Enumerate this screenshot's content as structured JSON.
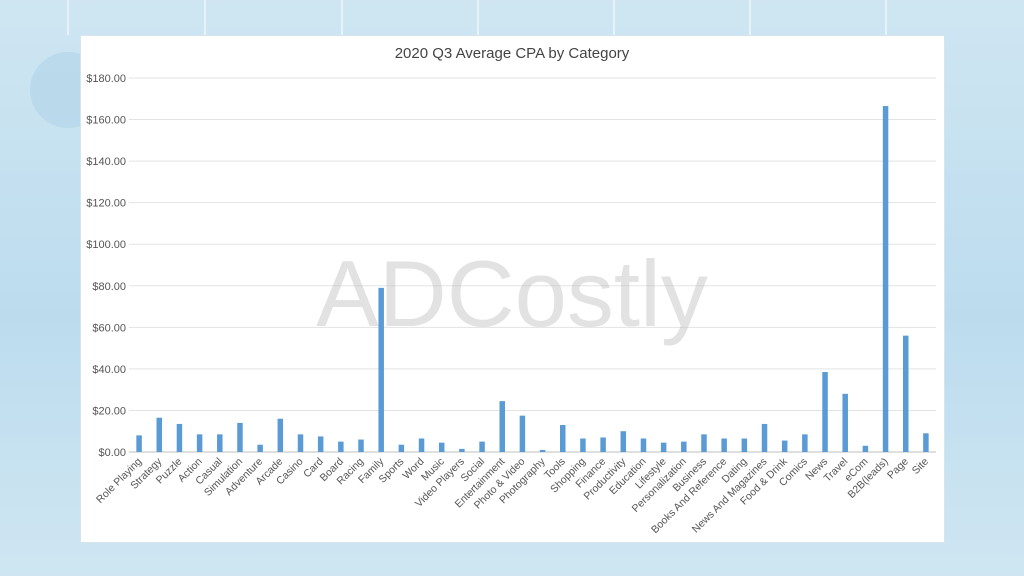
{
  "chart_data": {
    "type": "bar",
    "title": "2020 Q3 Average CPA by Category",
    "watermark": "ADCostly",
    "bar_color": "#5b9bd5",
    "ylim": [
      0,
      180
    ],
    "yticks": [
      "$0.00",
      "$20.00",
      "$40.00",
      "$60.00",
      "$80.00",
      "$100.00",
      "$120.00",
      "$140.00",
      "$160.00",
      "$180.00"
    ],
    "grid": true,
    "legend": false,
    "categories": [
      "Role Playing",
      "Strategy",
      "Puzzle",
      "Action",
      "Casual",
      "Simulation",
      "Adventure",
      "Arcade",
      "Casino",
      "Card",
      "Board",
      "Racing",
      "Family",
      "Sports",
      "Word",
      "Music",
      "Video Players",
      "Social",
      "Entertainment",
      "Photo & Video",
      "Photography",
      "Tools",
      "Shopping",
      "Finance",
      "Productivity",
      "Education",
      "Lifestyle",
      "Personalization",
      "Business",
      "Books And Reference",
      "Dating",
      "News And Magazines",
      "Food & Drink",
      "Comics",
      "News",
      "Travel",
      "eCom",
      "B2B(leads)",
      "Page",
      "Site"
    ],
    "values": [
      8.0,
      16.5,
      13.5,
      8.5,
      8.5,
      14.0,
      3.5,
      16.0,
      8.5,
      7.5,
      5.0,
      6.0,
      79.0,
      3.5,
      6.5,
      4.5,
      1.5,
      5.0,
      24.5,
      17.5,
      1.0,
      13.0,
      6.5,
      7.0,
      10.0,
      6.5,
      4.5,
      5.0,
      8.5,
      6.5,
      6.5,
      13.5,
      5.5,
      8.5,
      38.5,
      28.0,
      3.0,
      166.5,
      56.0,
      9.0
    ]
  }
}
